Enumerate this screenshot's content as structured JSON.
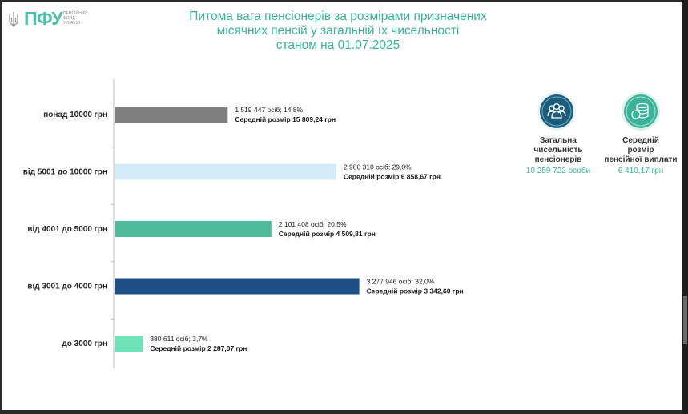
{
  "header": {
    "logo_text": "ПФУ",
    "logo_sub": [
      "ПЕНСІЙНИЙ",
      "ФОНД",
      "УКРАЇНИ"
    ],
    "title_lines": [
      "Питома вага пенсіонерів за розмірами призначених",
      "місячних пенсій у загальній їх чисельності",
      "станом на 01.07.2025"
    ]
  },
  "colors": {
    "accent": "#3bb39a",
    "bar_1": "#7f7f7f",
    "bar_2": "#d4ecf8",
    "bar_3": "#4dba99",
    "bar_4": "#1e4e86",
    "bar_5": "#6fe3b8"
  },
  "chart_data": {
    "type": "bar",
    "orientation": "horizontal",
    "title": "Питома вага пенсіонерів за розмірами призначених місячних пенсій у загальній їх чисельності станом на 01.07.2025",
    "categories": [
      "понад 10000 грн",
      "від 5001 до 10000 грн",
      "від 4001 до 5000 грн",
      "від 3001 до 4000 грн",
      "до 3000 грн"
    ],
    "values": [
      14.8,
      29.0,
      20.5,
      32.0,
      3.7
    ],
    "unit": "%",
    "colors": [
      "#7f7f7f",
      "#d4ecf8",
      "#4dba99",
      "#1e4e86",
      "#6fe3b8"
    ],
    "labels_line1": [
      "1 519 447 осіб;  14,8%",
      "2 980 310 осіб; 29,0%",
      "2 101 408 осіб; 20,5%",
      "3 277 946 осіб; 32,0%",
      "380 611 осіб; 3,7%"
    ],
    "labels_line2": [
      "Середній розмір 15 809,24 грн",
      "Середній розмір 6 858,67 грн",
      "Середній розмір 4 509,81 грн",
      "Середній розмір 3 342,60 грн",
      "Середній розмір 2 287,07 грн"
    ],
    "xlim": [
      0,
      35
    ],
    "grid": false,
    "legend": "none"
  },
  "stats": {
    "total": {
      "icon": "people-icon",
      "label_lines": [
        "Загальна",
        "чисельність",
        "пенсіонерів"
      ],
      "value": "10 259 722 особи",
      "circle_color": "#1e5a7a"
    },
    "average": {
      "icon": "coins-icon",
      "label_lines": [
        "Середній",
        "розмір",
        "пенсійної виплати"
      ],
      "value": "6 410,17 грн",
      "circle_color": "#3bb39a"
    }
  }
}
